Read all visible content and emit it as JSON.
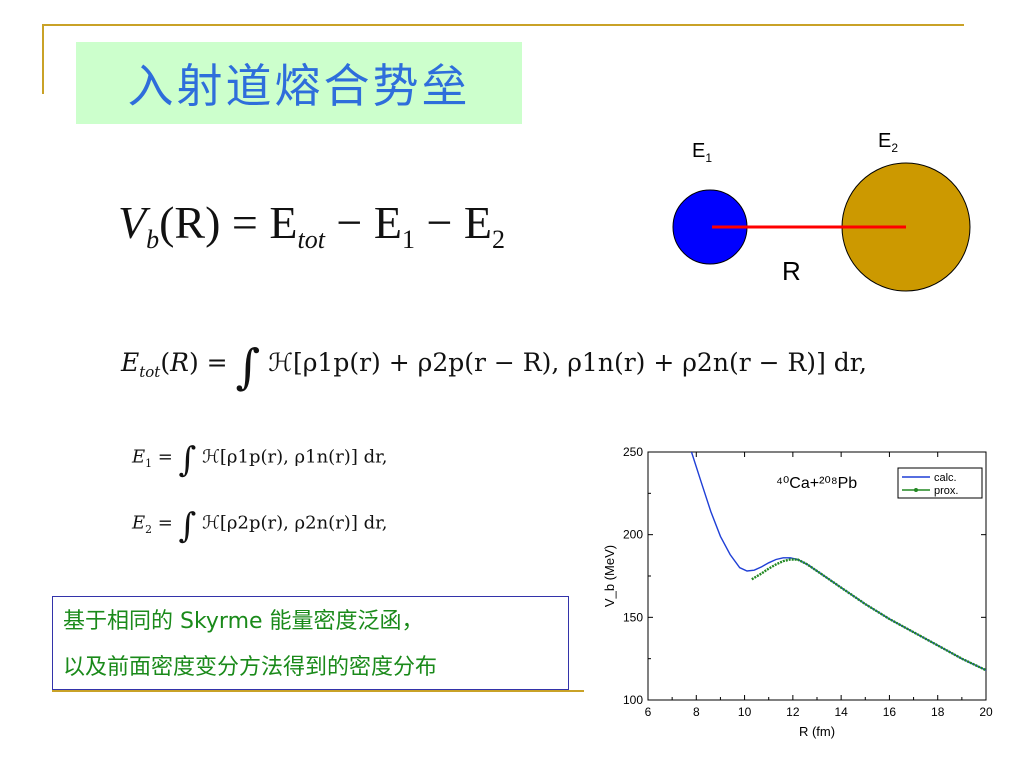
{
  "title": "入射道熔合势垒",
  "equations": {
    "vb_lhs": "V",
    "vb_sub": "b",
    "vb_arg": "(R) = E",
    "vb_tot": "tot",
    "vb_minus1": " − E",
    "vb_1": "1",
    "vb_minus2": " − E",
    "vb_2": "2",
    "etot": "ℋ[ρ1p(r) + ρ2p(r − R), ρ1n(r) + ρ2n(r − R)] dr,",
    "e1": "ℋ[ρ1p(r), ρ1n(r)] dr,",
    "e2": "ℋ[ρ2p(r), ρ2n(r)] dr,"
  },
  "diagram": {
    "label_e1": "E",
    "label_e1_sub": "1",
    "label_e2": "E",
    "label_e2_sub": "2",
    "label_r": "R",
    "colors": {
      "small": "#0000ff",
      "large": "#cc9900",
      "line": "#ff0000"
    }
  },
  "note": {
    "line1": "基于相同的 Skyrme 能量密度泛函，",
    "line2": "以及前面密度变分方法得到的密度分布"
  },
  "chart_data": {
    "type": "line",
    "title": "⁴⁰Ca+²⁰⁸Pb",
    "xlabel": "R (fm)",
    "ylabel": "V_b (MeV)",
    "xlim": [
      6,
      20
    ],
    "ylim": [
      100,
      250
    ],
    "xticks": [
      6,
      8,
      10,
      12,
      14,
      16,
      18,
      20
    ],
    "yticks": [
      100,
      150,
      200,
      250
    ],
    "legend_position": "top-right",
    "series": [
      {
        "name": "calc.",
        "color": "#1f3fd6",
        "style": "solid",
        "x": [
          7.8,
          8.2,
          8.6,
          9.0,
          9.4,
          9.8,
          10.1,
          10.4,
          10.7,
          11.0,
          11.3,
          11.6,
          11.9,
          12.2,
          12.6,
          13.0,
          14.0,
          15.0,
          16.0,
          17.0,
          18.0,
          19.0,
          20.0
        ],
        "y": [
          250,
          232,
          214,
          199,
          188,
          180,
          178,
          178.5,
          180.5,
          183,
          185,
          186,
          186,
          185,
          182,
          178,
          168,
          158,
          149,
          141,
          133,
          125,
          118
        ]
      },
      {
        "name": "prox.",
        "color": "#228822",
        "style": "dotted",
        "x": [
          10.3,
          10.7,
          11.0,
          11.3,
          11.6,
          11.9,
          12.2,
          12.6,
          13.0,
          14.0,
          15.0,
          16.0,
          17.0,
          18.0,
          19.0,
          20.0
        ],
        "y": [
          173,
          176.5,
          179.5,
          182,
          184,
          185,
          185,
          182,
          178,
          168,
          158,
          149,
          141,
          133,
          125,
          118
        ]
      }
    ]
  }
}
